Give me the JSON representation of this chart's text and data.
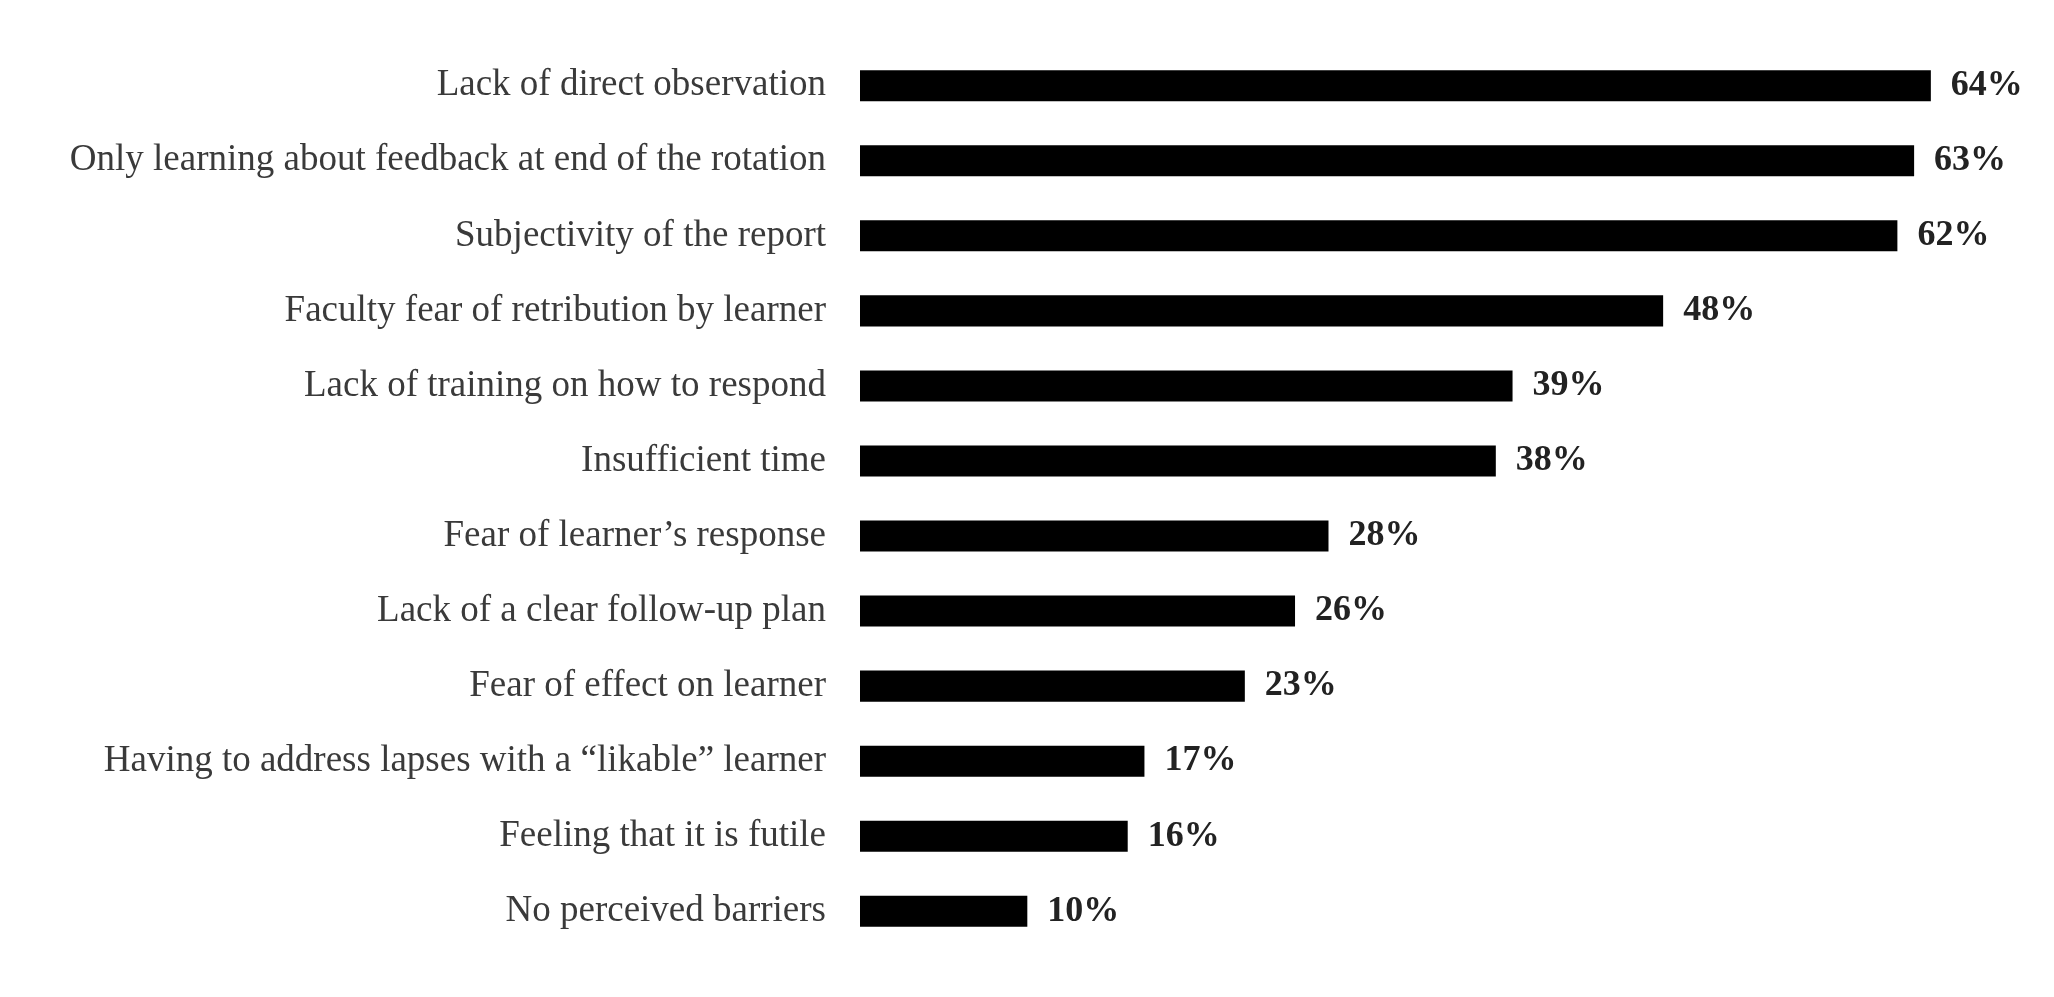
{
  "chart_data": {
    "type": "bar",
    "orientation": "horizontal",
    "categories": [
      "Lack of direct observation",
      "Only learning about feedback at end of the rotation",
      "Subjectivity of the report",
      "Faculty fear of retribution by learner",
      "Lack of training on how to respond",
      "Insufficient time",
      "Fear of learner’s response",
      "Lack of a clear follow-up plan",
      "Fear of effect on learner",
      "Having to address lapses with a “likable” learner",
      "Feeling that it is futile",
      "No perceived barriers"
    ],
    "values": [
      64,
      63,
      62,
      48,
      39,
      38,
      28,
      26,
      23,
      17,
      16,
      10
    ],
    "value_labels": [
      "64%",
      "63%",
      "62%",
      "48%",
      "39%",
      "38%",
      "28%",
      "26%",
      "23%",
      "17%",
      "16%",
      "10%"
    ],
    "color": "#000000"
  }
}
